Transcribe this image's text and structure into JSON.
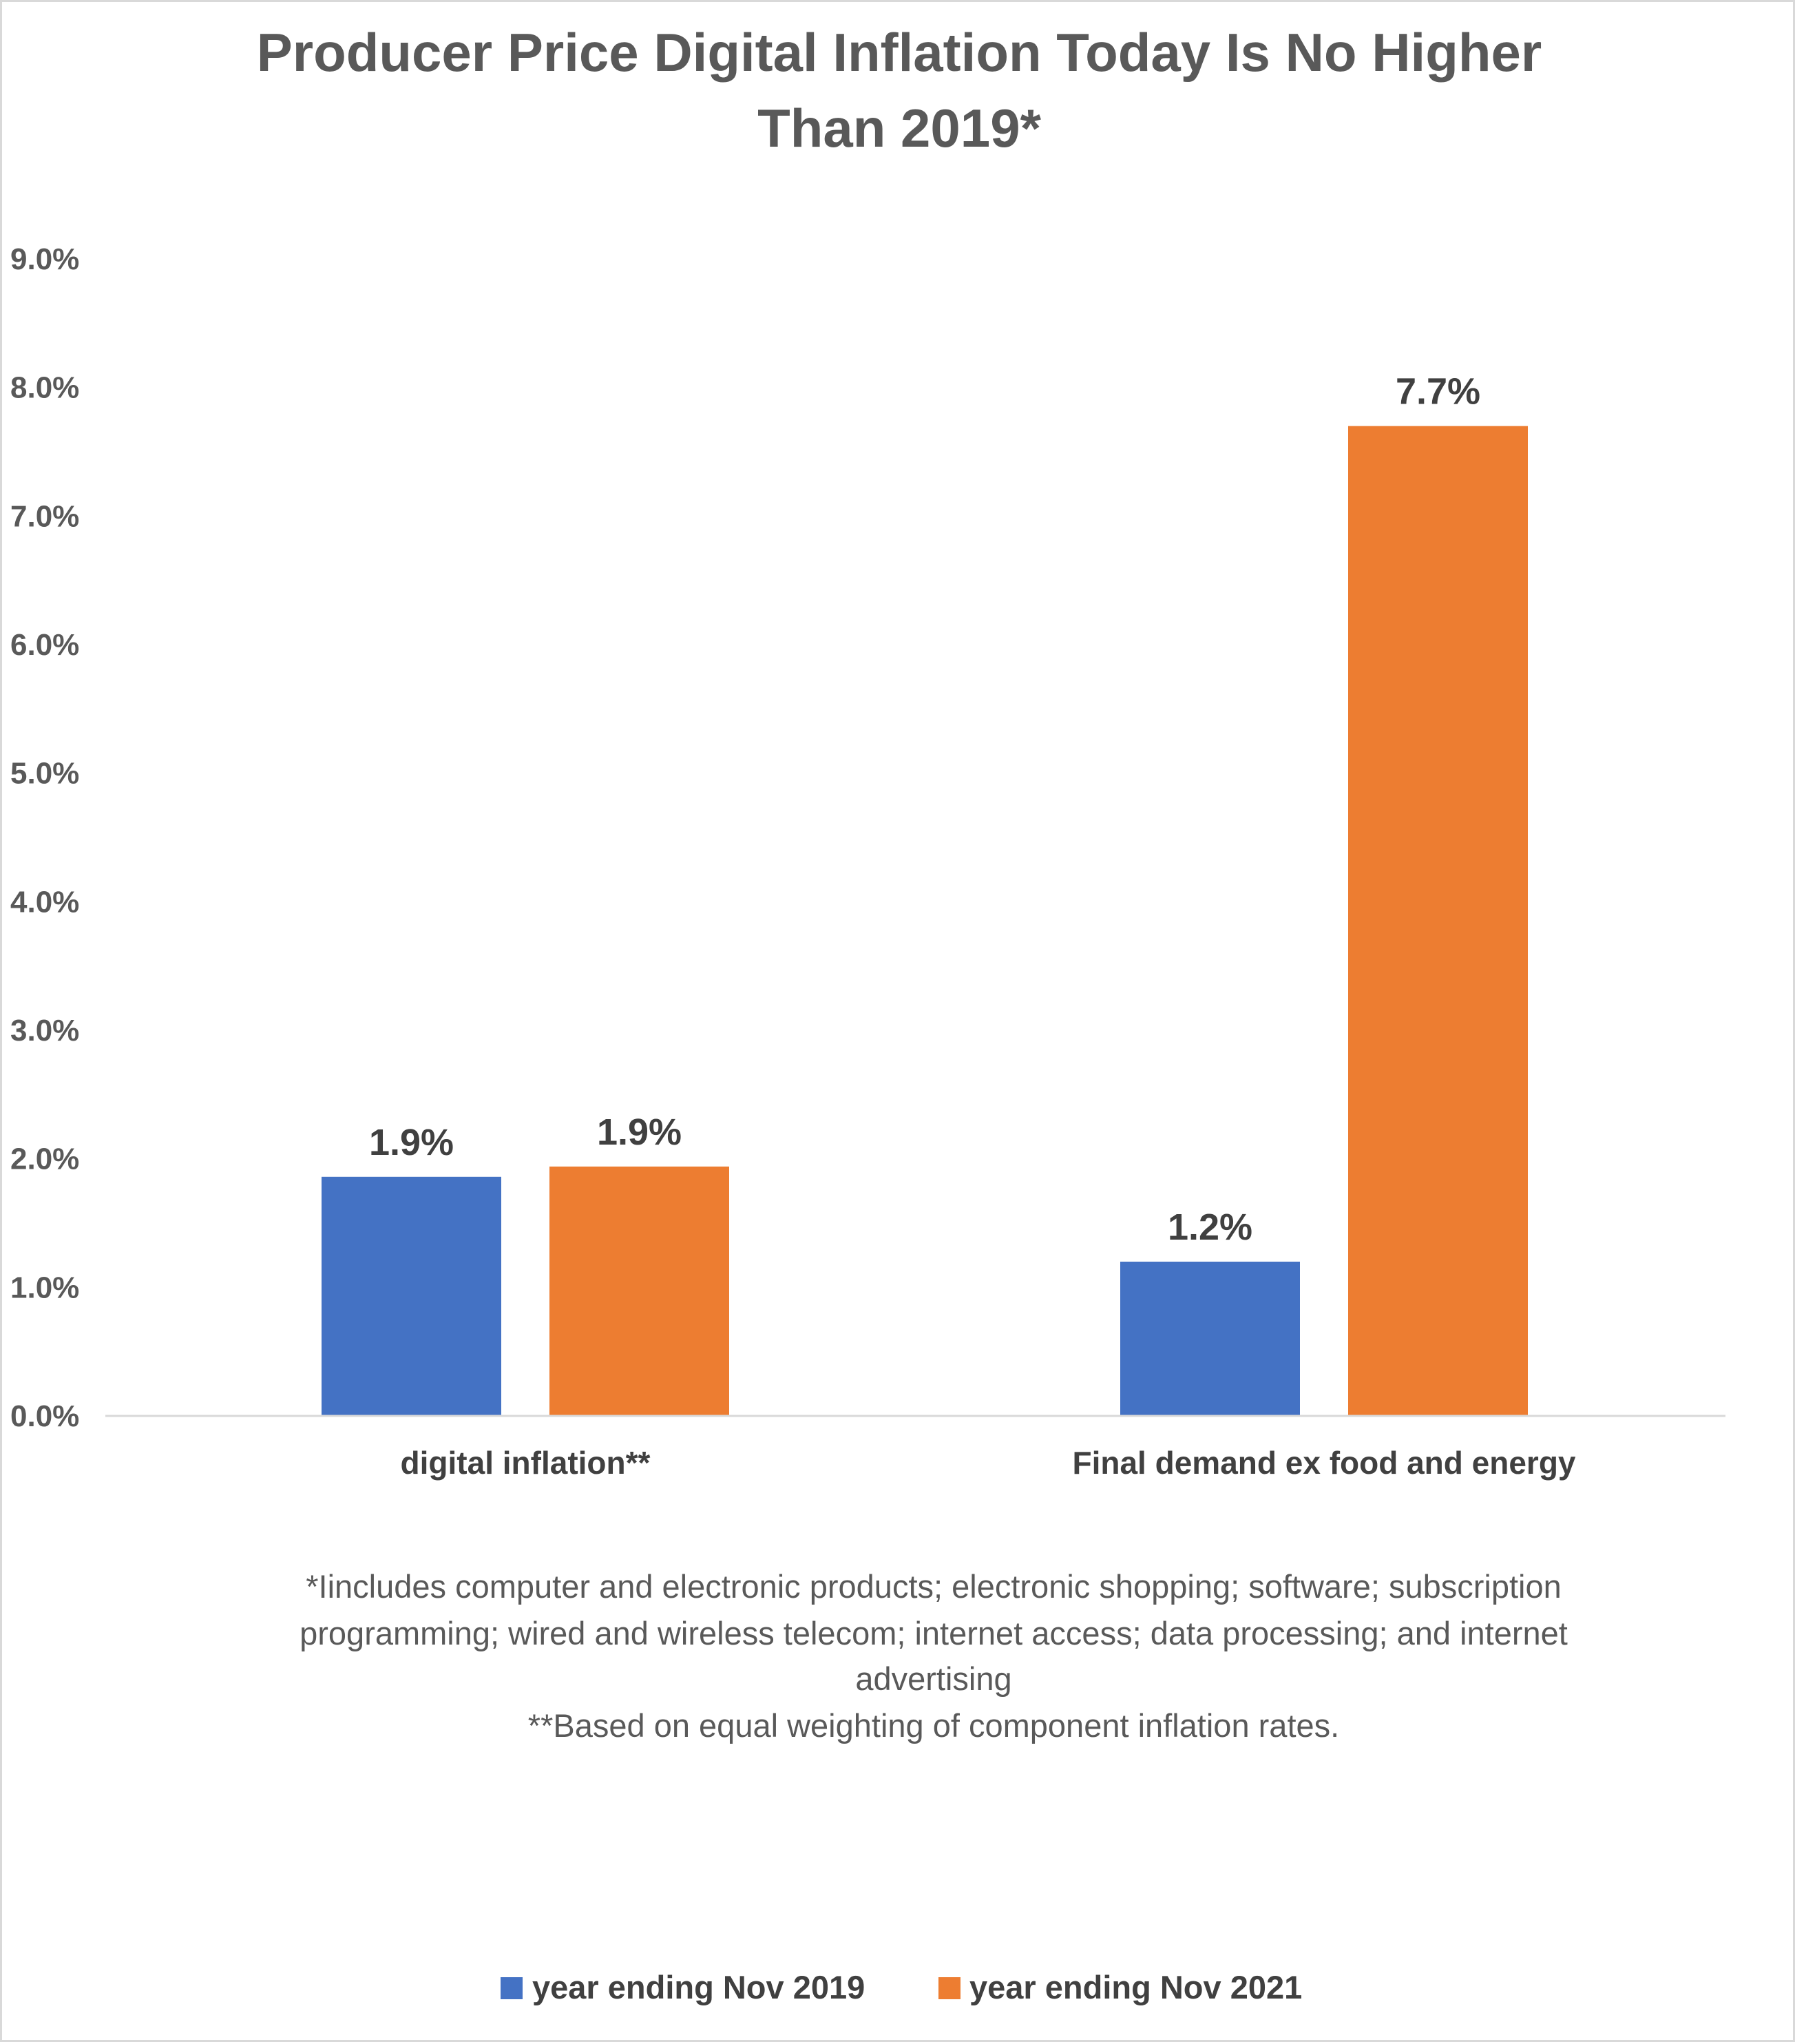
{
  "chart_data": {
    "type": "bar",
    "title_lines": [
      "Producer Price  Digital Inflation Today Is No Higher",
      "Than 2019*"
    ],
    "xlabel": "",
    "ylabel": "",
    "categories": [
      "digital inflation**",
      "Final demand ex food and energy"
    ],
    "series": [
      {
        "name": "year ending Nov 2019",
        "color": "#4472c4",
        "values": [
          1.86,
          1.2
        ],
        "labels": [
          "1.9%",
          "1.2%"
        ]
      },
      {
        "name": "year ending Nov 2021",
        "color": "#ed7d31",
        "values": [
          1.94,
          7.7
        ],
        "labels": [
          "1.9%",
          "7.7%"
        ]
      }
    ],
    "ylim": [
      0,
      9
    ],
    "y_ticks": [
      {
        "value": 0,
        "label": "0.0%"
      },
      {
        "value": 1,
        "label": "1.0%"
      },
      {
        "value": 2,
        "label": "2.0%"
      },
      {
        "value": 3,
        "label": "3.0%"
      },
      {
        "value": 4,
        "label": "4.0%"
      },
      {
        "value": 5,
        "label": "5.0%"
      },
      {
        "value": 6,
        "label": "6.0%"
      },
      {
        "value": 7,
        "label": "7.0%"
      },
      {
        "value": 8,
        "label": "8.0%"
      },
      {
        "value": 9,
        "label": "9.0%"
      }
    ],
    "grid": false,
    "legend_position": "bottom",
    "footnote_lines": [
      "*Iincludes computer and electronic products; electronic shopping; software; subscription",
      "programming; wired and wireless telecom; internet access; data processing; and internet",
      "advertising",
      "**Based on equal weighting of component inflation rates."
    ]
  }
}
